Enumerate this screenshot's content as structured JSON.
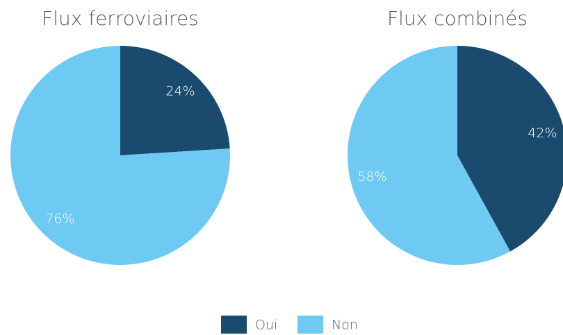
{
  "chart_data": [
    {
      "type": "pie",
      "title": "Flux ferroviaires",
      "values": [
        24,
        76
      ],
      "value_labels": [
        "24%",
        "76%"
      ]
    },
    {
      "type": "pie",
      "title": "Flux combinés",
      "values": [
        42,
        58
      ],
      "value_labels": [
        "42%",
        "58%"
      ]
    }
  ],
  "legend": {
    "labels": [
      "Oui",
      "Non"
    ],
    "colors": [
      "#1a4a6e",
      "#6ec9f3"
    ]
  }
}
